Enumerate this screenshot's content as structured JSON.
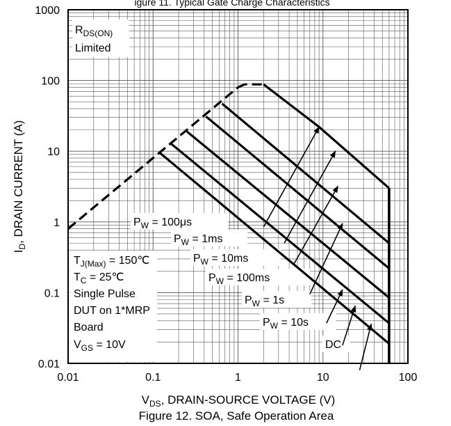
{
  "chart_data": {
    "type": "line",
    "x_scale": "log",
    "y_scale": "log",
    "xlim": [
      0.01,
      100
    ],
    "ylim": [
      0.01,
      1000
    ],
    "grid": true,
    "title_partial": "igure 11. Typical Gate Charge Characteristics",
    "caption": "Figure 12. SOA, Safe Operation Area",
    "xlabel": {
      "base": "V",
      "sub": "DS",
      "rest": ", DRAIN-SOURCE VOLTAGE (V)"
    },
    "ylabel": {
      "base": "I",
      "sub": "D",
      "rest": ", DRAIN CURRENT (A)"
    },
    "x_ticks": [
      {
        "value": 0.01,
        "label": "0.01"
      },
      {
        "value": 0.1,
        "label": "0.1"
      },
      {
        "value": 1,
        "label": "1"
      },
      {
        "value": 10,
        "label": "10"
      },
      {
        "value": 100,
        "label": "100"
      }
    ],
    "y_ticks": [
      {
        "value": 0.01,
        "label": "0.01"
      },
      {
        "value": 0.1,
        "label": "0.1"
      },
      {
        "value": 1,
        "label": "1"
      },
      {
        "value": 10,
        "label": "10"
      },
      {
        "value": 100,
        "label": "100"
      },
      {
        "value": 1000,
        "label": "1000"
      }
    ],
    "rds_limit": {
      "label_base": "R",
      "label_sub": "DS(ON)",
      "label_line2": "Limited",
      "points": [
        [
          0.01,
          0.8
        ],
        [
          1.0,
          80
        ]
      ]
    },
    "package_limit": {
      "points": [
        [
          1.0,
          80
        ],
        [
          1.2,
          88
        ],
        [
          2.0,
          88
        ]
      ]
    },
    "vds_max": 60,
    "series": [
      {
        "pw_sub": "W",
        "pw_value": " = 100μs",
        "points": [
          [
            2.0,
            88
          ],
          [
            9.0,
            22
          ],
          [
            60,
            3.0
          ]
        ]
      },
      {
        "pw_sub": "W",
        "pw_value": " = 1ms",
        "points": [
          [
            0.65,
            47
          ],
          [
            60,
            0.5
          ]
        ]
      },
      {
        "pw_sub": "W",
        "pw_value": " = 10ms",
        "points": [
          [
            0.42,
            31
          ],
          [
            60,
            0.22
          ]
        ]
      },
      {
        "pw_sub": "W",
        "pw_value": " = 100ms",
        "points": [
          [
            0.25,
            19
          ],
          [
            60,
            0.085
          ]
        ]
      },
      {
        "pw_sub": "W",
        "pw_value": " = 1s",
        "points": [
          [
            0.16,
            13
          ],
          [
            60,
            0.037
          ]
        ]
      },
      {
        "pw_sub": "W",
        "pw_value": " = 10s",
        "points": [
          [
            0.12,
            9.5
          ],
          [
            60,
            0.019
          ]
        ]
      }
    ],
    "conditions": {
      "tj": {
        "base": "T",
        "sub": "J(Max)",
        "rest": " = 150℃"
      },
      "tc": {
        "base": "T",
        "sub": "C",
        "rest": " = 25℃"
      },
      "pulse": "Single Pulse",
      "dut": "DUT on 1*MRP",
      "board": "Board",
      "vgs": {
        "base": "V",
        "sub": "GS",
        "rest": " = 10V"
      }
    },
    "dc_label": "DC",
    "arrows": [
      {
        "label": "P_W = 100μs",
        "from": [
          2.0,
          0.85
        ],
        "to": [
          9.0,
          22
        ]
      },
      {
        "label": "P_W = 1ms",
        "from": [
          3.5,
          0.5
        ],
        "to": [
          14,
          10
        ]
      },
      {
        "label": "P_W = 10ms",
        "from": [
          4.6,
          0.26
        ],
        "to": [
          15,
          3.2
        ]
      },
      {
        "label": "P_W = 100ms",
        "from": [
          7.0,
          0.095
        ],
        "to": [
          17,
          0.95
        ]
      },
      {
        "label": "P_W = 1s",
        "from": [
          11.0,
          0.037
        ],
        "to": [
          17,
          0.11
        ]
      },
      {
        "label": "P_W = 10s",
        "from": [
          17,
          0.018
        ],
        "to": [
          24,
          0.065
        ]
      },
      {
        "label": "DC",
        "from": [
          27,
          0.008
        ],
        "to": [
          37,
          0.036
        ]
      }
    ]
  }
}
